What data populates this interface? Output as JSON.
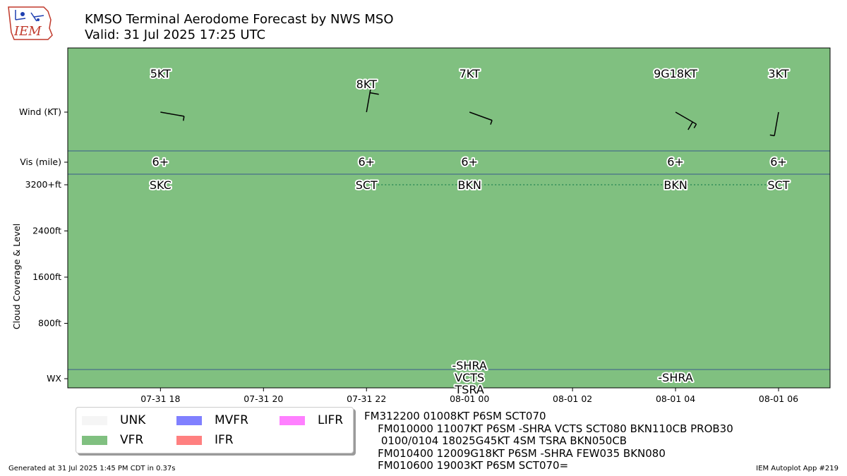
{
  "header": {
    "title_line1": "KMSO Terminal Aerodome Forecast by NWS MSO",
    "title_line2": "Valid: 31 Jul 2025 17:25 UTC",
    "logo_text": "IEM"
  },
  "colors": {
    "vfr": "#80c080",
    "unk": "#f5f5f5",
    "mvfr": "#8080ff",
    "ifr": "#ff8080",
    "lifr": "#ff80ff",
    "divider": "#3a5a8c",
    "cloud_line": "#2e8b57",
    "logo": "#c0392b"
  },
  "chart_data": {
    "type": "timeline",
    "flight_category": "VFR",
    "x_ticks": [
      "07-31 18",
      "07-31 20",
      "07-31 22",
      "08-01 00",
      "08-01 02",
      "08-01 04",
      "08-01 06"
    ],
    "x_tick_hours": [
      18,
      20,
      22,
      24,
      26,
      28,
      30
    ],
    "x_range_hours": [
      16.2,
      31.0
    ],
    "ylabel": "Cloud Coverage & Level",
    "row_labels": {
      "wind": "Wind (KT)",
      "vis": "Vis (mile)",
      "wx": "WX"
    },
    "cloud_ticks": [
      {
        "label": "3200+ft",
        "ft": 3200
      },
      {
        "label": "2400ft",
        "ft": 2400
      },
      {
        "label": "1600ft",
        "ft": 1600
      },
      {
        "label": "800ft",
        "ft": 800
      }
    ],
    "forecasts": [
      {
        "hour": 18.0,
        "wind_label": "5KT",
        "wind_dir": 100,
        "wind_speed": 5,
        "vis": "6+",
        "cloud": "SKC",
        "wx": []
      },
      {
        "hour": 22.0,
        "wind_label": "8KT",
        "wind_dir": 10,
        "wind_speed": 8,
        "vis": "6+",
        "cloud": "SCT",
        "wx": []
      },
      {
        "hour": 24.0,
        "wind_label": "7KT",
        "wind_dir": 110,
        "wind_speed": 7,
        "vis": "6+",
        "cloud": "BKN",
        "wx": [
          "-SHRA",
          "VCTS",
          "TSRA"
        ]
      },
      {
        "hour": 28.0,
        "wind_label": "9G18KT",
        "wind_dir": 120,
        "wind_speed": 9,
        "vis": "6+",
        "cloud": "BKN",
        "wx": [
          "-SHRA"
        ]
      },
      {
        "hour": 30.0,
        "wind_label": "3KT",
        "wind_dir": 190,
        "wind_speed": 3,
        "vis": "6+",
        "cloud": "SCT",
        "wx": []
      }
    ]
  },
  "legend": [
    {
      "label": "UNK",
      "color_key": "unk"
    },
    {
      "label": "MVFR",
      "color_key": "mvfr"
    },
    {
      "label": "LIFR",
      "color_key": "lifr"
    },
    {
      "label": "VFR",
      "color_key": "vfr"
    },
    {
      "label": "IFR",
      "color_key": "ifr"
    }
  ],
  "taf_text": [
    "FM312200 01008KT P6SM SCT070",
    "    FM010000 11007KT P6SM -SHRA VCTS SCT080 BKN110CB PROB30",
    "     0100/0104 18025G45KT 4SM TSRA BKN050CB",
    "    FM010400 12009G18KT P6SM -SHRA FEW035 BKN080",
    "    FM010600 19003KT P6SM SCT070="
  ],
  "footer": {
    "generated": "Generated at 31 Jul 2025 1:45 PM CDT in 0.37s",
    "app": "IEM Autoplot App #219"
  }
}
